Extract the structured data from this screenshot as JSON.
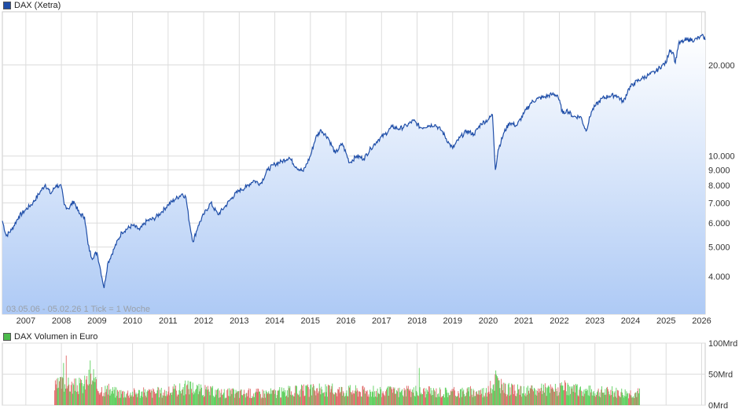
{
  "legend": {
    "price": {
      "label": "DAX (Xetra)",
      "color": "#1f4ea8"
    },
    "volume": {
      "label": "DAX Volumen in Euro",
      "color": "#4cbb4c"
    }
  },
  "note": "03.05.06 - 05.02.26   1 Tick = 1 Woche",
  "chart_data": [
    {
      "type": "area",
      "series": [
        {
          "name": "DAX (Xetra)"
        }
      ],
      "scale": "log",
      "ylim": [
        3000,
        30000
      ],
      "xlim": [
        2006.34,
        2026.1
      ],
      "y_ticks": [
        {
          "value": 4000,
          "label": "4.000"
        },
        {
          "value": 5000,
          "label": "5.000"
        },
        {
          "value": 6000,
          "label": "6.000"
        },
        {
          "value": 7000,
          "label": "7.000"
        },
        {
          "value": 8000,
          "label": "8.000"
        },
        {
          "value": 9000,
          "label": "9.000"
        },
        {
          "value": 10000,
          "label": "10.000"
        },
        {
          "value": 20000,
          "label": "20.000"
        }
      ],
      "x_ticks": [
        "2007",
        "2008",
        "2009",
        "2010",
        "2011",
        "2012",
        "2013",
        "2014",
        "2015",
        "2016",
        "2017",
        "2018",
        "2019",
        "2020",
        "2021",
        "2022",
        "2023",
        "2024",
        "2025",
        "2026"
      ],
      "grid": true,
      "points": [
        [
          2006.34,
          6100
        ],
        [
          2006.45,
          5450
        ],
        [
          2006.6,
          5700
        ],
        [
          2006.8,
          6300
        ],
        [
          2007.0,
          6650
        ],
        [
          2007.2,
          7000
        ],
        [
          2007.4,
          7600
        ],
        [
          2007.55,
          8050
        ],
        [
          2007.7,
          7500
        ],
        [
          2007.85,
          8000
        ],
        [
          2008.0,
          7900
        ],
        [
          2008.08,
          6900
        ],
        [
          2008.2,
          6700
        ],
        [
          2008.35,
          7100
        ],
        [
          2008.5,
          6450
        ],
        [
          2008.65,
          6300
        ],
        [
          2008.75,
          5100
        ],
        [
          2008.85,
          4600
        ],
        [
          2009.0,
          4800
        ],
        [
          2009.1,
          4200
        ],
        [
          2009.2,
          3660
        ],
        [
          2009.3,
          4400
        ],
        [
          2009.5,
          5000
        ],
        [
          2009.7,
          5600
        ],
        [
          2010.0,
          5900
        ],
        [
          2010.2,
          5700
        ],
        [
          2010.4,
          6100
        ],
        [
          2010.6,
          6200
        ],
        [
          2010.8,
          6500
        ],
        [
          2011.0,
          6900
        ],
        [
          2011.2,
          7200
        ],
        [
          2011.4,
          7500
        ],
        [
          2011.5,
          7300
        ],
        [
          2011.6,
          6000
        ],
        [
          2011.7,
          5200
        ],
        [
          2011.85,
          5900
        ],
        [
          2012.0,
          6400
        ],
        [
          2012.2,
          7000
        ],
        [
          2012.4,
          6400
        ],
        [
          2012.6,
          6800
        ],
        [
          2012.8,
          7300
        ],
        [
          2013.0,
          7700
        ],
        [
          2013.2,
          7900
        ],
        [
          2013.4,
          8300
        ],
        [
          2013.6,
          8100
        ],
        [
          2013.8,
          9000
        ],
        [
          2014.0,
          9400
        ],
        [
          2014.2,
          9600
        ],
        [
          2014.4,
          9900
        ],
        [
          2014.6,
          9200
        ],
        [
          2014.8,
          8900
        ],
        [
          2015.0,
          10000
        ],
        [
          2015.15,
          11500
        ],
        [
          2015.3,
          12200
        ],
        [
          2015.5,
          11500
        ],
        [
          2015.7,
          10200
        ],
        [
          2015.9,
          11000
        ],
        [
          2016.1,
          9500
        ],
        [
          2016.3,
          10000
        ],
        [
          2016.5,
          9800
        ],
        [
          2016.7,
          10600
        ],
        [
          2016.9,
          11300
        ],
        [
          2017.1,
          11800
        ],
        [
          2017.3,
          12500
        ],
        [
          2017.5,
          12300
        ],
        [
          2017.7,
          12600
        ],
        [
          2017.9,
          13100
        ],
        [
          2018.1,
          12400
        ],
        [
          2018.3,
          12600
        ],
        [
          2018.5,
          12700
        ],
        [
          2018.7,
          12100
        ],
        [
          2018.9,
          11000
        ],
        [
          2019.0,
          10600
        ],
        [
          2019.2,
          11500
        ],
        [
          2019.4,
          12100
        ],
        [
          2019.6,
          11800
        ],
        [
          2019.8,
          12800
        ],
        [
          2020.0,
          13200
        ],
        [
          2020.12,
          13700
        ],
        [
          2020.2,
          9000
        ],
        [
          2020.28,
          10500
        ],
        [
          2020.45,
          12000
        ],
        [
          2020.6,
          12900
        ],
        [
          2020.8,
          12600
        ],
        [
          2021.0,
          13800
        ],
        [
          2021.2,
          15000
        ],
        [
          2021.4,
          15500
        ],
        [
          2021.6,
          15700
        ],
        [
          2021.8,
          16000
        ],
        [
          2021.95,
          15900
        ],
        [
          2022.1,
          13800
        ],
        [
          2022.2,
          14200
        ],
        [
          2022.4,
          13500
        ],
        [
          2022.6,
          13500
        ],
        [
          2022.75,
          12100
        ],
        [
          2022.9,
          14000
        ],
        [
          2023.0,
          14600
        ],
        [
          2023.2,
          15500
        ],
        [
          2023.4,
          15800
        ],
        [
          2023.6,
          15900
        ],
        [
          2023.8,
          15100
        ],
        [
          2023.95,
          16700
        ],
        [
          2024.1,
          17400
        ],
        [
          2024.3,
          18000
        ],
        [
          2024.5,
          18500
        ],
        [
          2024.7,
          19000
        ],
        [
          2024.9,
          20000
        ],
        [
          2025.0,
          20300
        ],
        [
          2025.1,
          22500
        ],
        [
          2025.2,
          22000
        ],
        [
          2025.26,
          20300
        ],
        [
          2025.35,
          23500
        ],
        [
          2025.5,
          24000
        ],
        [
          2025.65,
          24300
        ],
        [
          2025.8,
          24200
        ],
        [
          2025.95,
          24700
        ],
        [
          2026.05,
          24900
        ],
        [
          2026.1,
          24200
        ]
      ]
    },
    {
      "type": "bar",
      "series": [
        {
          "name": "DAX Volumen in Euro"
        }
      ],
      "ylim": [
        0,
        100
      ],
      "y_ticks": [
        {
          "value": 0,
          "label": "0Mrd"
        },
        {
          "value": 50,
          "label": "50Mrd"
        },
        {
          "value": 100,
          "label": "100Mrd"
        }
      ],
      "xlim": [
        2006.34,
        2026.1
      ],
      "start": 2007.8,
      "end": 2024.25,
      "colors": {
        "up": "#5ccf5c",
        "down": "#e06666"
      },
      "levels": [
        [
          2007.8,
          28
        ],
        [
          2008.0,
          35
        ],
        [
          2008.3,
          30
        ],
        [
          2008.6,
          32
        ],
        [
          2008.8,
          45
        ],
        [
          2009.0,
          28
        ],
        [
          2009.3,
          24
        ],
        [
          2009.6,
          20
        ],
        [
          2010.0,
          20
        ],
        [
          2011.0,
          21
        ],
        [
          2011.6,
          30
        ],
        [
          2011.9,
          24
        ],
        [
          2012.5,
          20
        ],
        [
          2013.0,
          19
        ],
        [
          2014.0,
          20
        ],
        [
          2015.0,
          24
        ],
        [
          2016.0,
          24
        ],
        [
          2017.0,
          21
        ],
        [
          2018.0,
          22
        ],
        [
          2019.0,
          21
        ],
        [
          2020.0,
          22
        ],
        [
          2020.2,
          42
        ],
        [
          2020.4,
          26
        ],
        [
          2021.0,
          22
        ],
        [
          2022.0,
          26
        ],
        [
          2023.0,
          22
        ],
        [
          2024.0,
          20
        ],
        [
          2024.25,
          20
        ]
      ],
      "spikes": [
        [
          2008.05,
          68
        ],
        [
          2008.12,
          80
        ],
        [
          2008.8,
          72
        ],
        [
          2008.9,
          58
        ],
        [
          2011.62,
          38
        ],
        [
          2018.05,
          60
        ],
        [
          2020.2,
          56
        ],
        [
          2022.15,
          40
        ]
      ]
    }
  ]
}
